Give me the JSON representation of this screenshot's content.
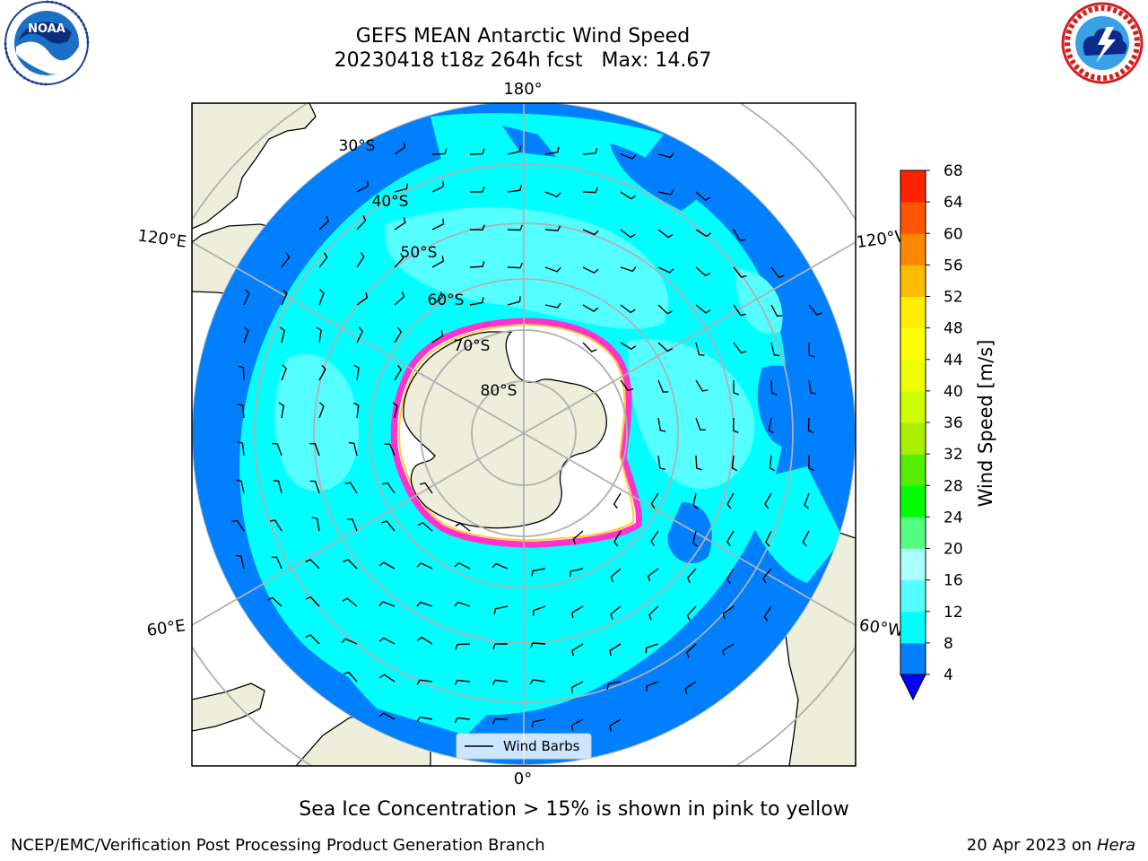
{
  "header": {
    "title_line1": "GEFS MEAN Antarctic Wind Speed",
    "title_line2": "20230418 t18z 264h fcst   Max: 14.67"
  },
  "logos": {
    "left": "noaa-logo",
    "right": "national-weather-service-logo",
    "left_text": "NOAA",
    "right_text": "NATIONAL WEATHER SERVICE"
  },
  "map": {
    "projection": "south-polar-stereographic",
    "longitude_labels": {
      "top": "180°",
      "bottom": "0°",
      "upper_left": "120°E",
      "upper_right": "120°W",
      "lower_left": "60°E",
      "lower_right": "60°W"
    },
    "latitude_labels": [
      "30°S",
      "40°S",
      "50°S",
      "60°S",
      "70°S",
      "80°S"
    ],
    "legend": {
      "label": "Wind Barbs",
      "line_color": "#000000"
    },
    "colors": {
      "land": "#eeeedd",
      "ocean_dark": "#0080ff",
      "ocean_cyan": "#00ffff",
      "ocean_light": "#55ffff",
      "ice_white": "#ffffff",
      "ice_edge_pink": "#ff33cc",
      "ice_edge_yellow": "#ffcc33",
      "gridline": "#b0b0b0"
    }
  },
  "colorbar": {
    "label": "Wind Speed [m/s]",
    "ticks": [
      "4",
      "8",
      "12",
      "16",
      "20",
      "24",
      "28",
      "32",
      "36",
      "40",
      "44",
      "48",
      "52",
      "56",
      "60",
      "64",
      "68"
    ],
    "colors": [
      "#0080ff",
      "#00ffff",
      "#55ffff",
      "#aaffff",
      "#55ff80",
      "#00ff00",
      "#55ee00",
      "#aaee00",
      "#ccff00",
      "#eeff00",
      "#ffff00",
      "#ffee00",
      "#ffbb00",
      "#ff8800",
      "#ff5500",
      "#ff2200"
    ],
    "extend_min_color": "#0000ff"
  },
  "notes": {
    "sea_ice": "Sea Ice Concentration > 15% is shown in pink to yellow"
  },
  "footer": {
    "left": "NCEP/EMC/Verification Post Processing Product Generation Branch",
    "right_date": "20 Apr 2023 on ",
    "right_host": "Hera"
  }
}
